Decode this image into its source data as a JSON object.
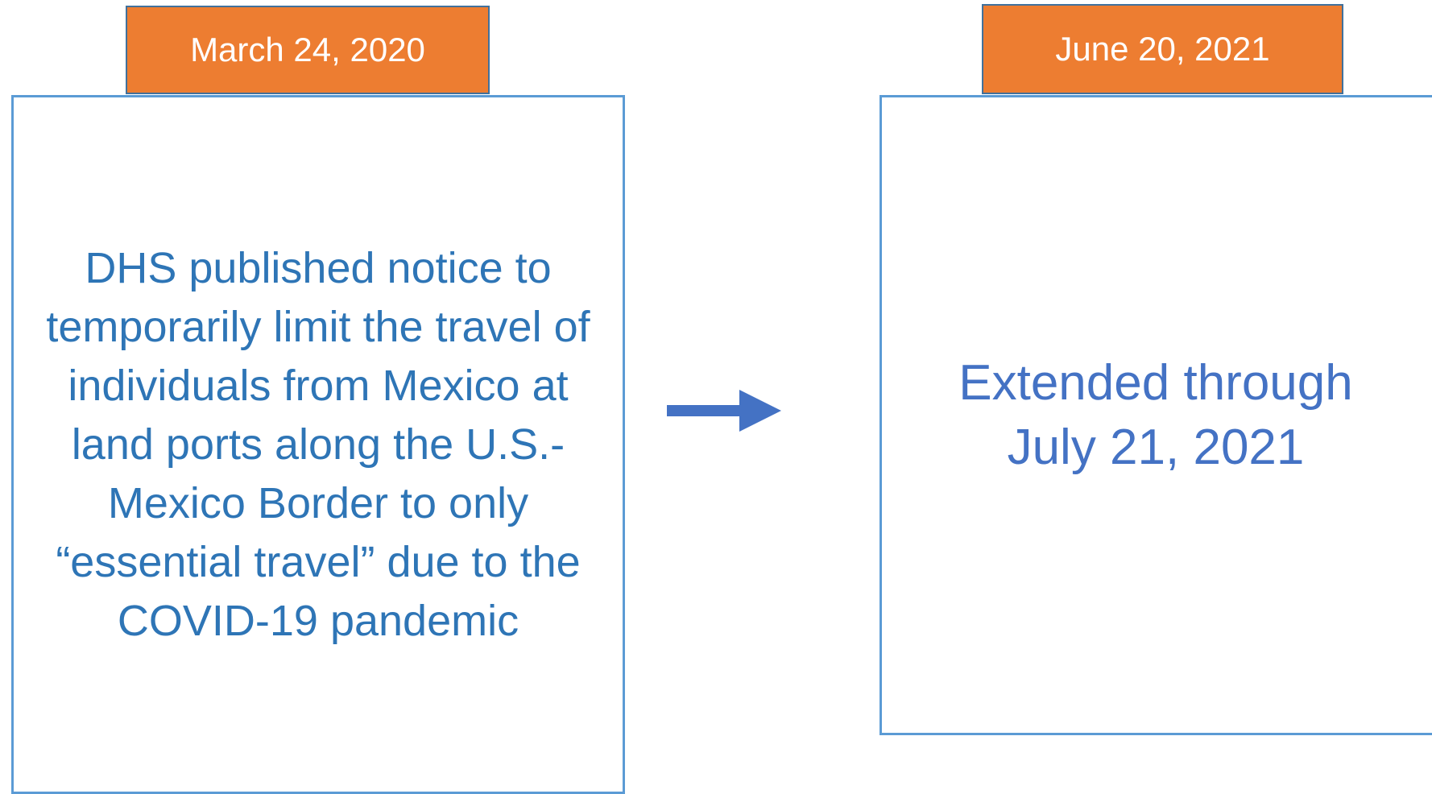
{
  "events": [
    {
      "date": "March 24, 2020",
      "text": "DHS published notice to temporarily limit the travel of individuals from Mexico at land ports along the U.S.-Mexico Border to only “essential travel” due to the COVID-19 pandemic"
    },
    {
      "date": "June 20, 2021",
      "text": "Extended through July 21, 2021"
    }
  ]
}
